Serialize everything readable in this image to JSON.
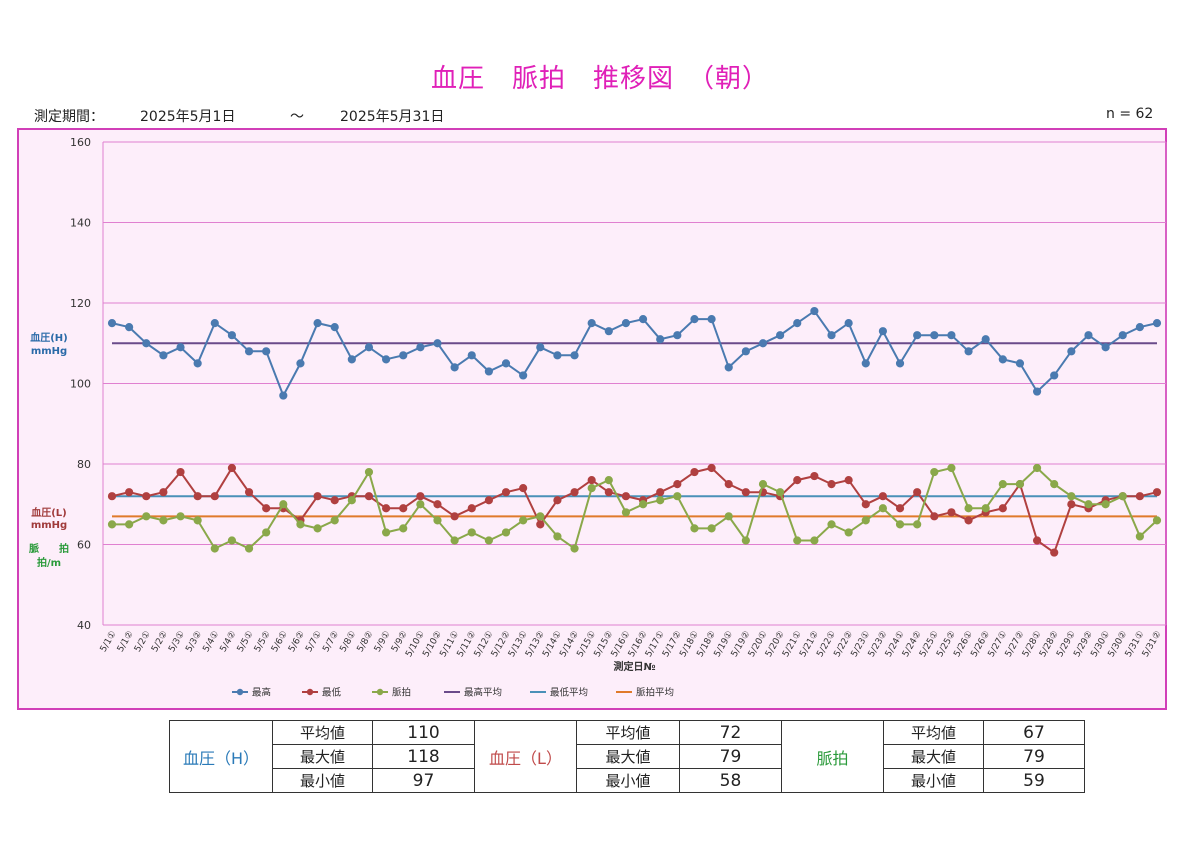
{
  "header": {
    "title": "血圧　脈拍　推移図　（朝）",
    "period_label": "測定期間：",
    "start_date": "2025年5月1日",
    "tilde": "～",
    "end_date": "2025年5月31日",
    "n_label": "n = 62"
  },
  "chart_data": {
    "type": "line",
    "xlabel": "測定日№",
    "ylabel_high": "血圧(H)",
    "ylabel_high_unit": "mmHg",
    "ylabel_low": "血圧(L)",
    "ylabel_low_unit": "mmHg",
    "ylabel_pulse": "脈　　拍",
    "ylabel_pulse_unit": "拍/m",
    "ylim": [
      40,
      160
    ],
    "yticks": [
      40,
      60,
      80,
      100,
      120,
      140,
      160
    ],
    "grid": true,
    "legend_position": "bottom",
    "x": [
      "5/1①",
      "5/1②",
      "5/2①",
      "5/2②",
      "5/3①",
      "5/3②",
      "5/4①",
      "5/4②",
      "5/5①",
      "5/5②",
      "5/6①",
      "5/6②",
      "5/7①",
      "5/7②",
      "5/8①",
      "5/8②",
      "5/9①",
      "5/9②",
      "5/10①",
      "5/10②",
      "5/11①",
      "5/11②",
      "5/12①",
      "5/12②",
      "5/13①",
      "5/13②",
      "5/14①",
      "5/14②",
      "5/15①",
      "5/15②",
      "5/16①",
      "5/16②",
      "5/17①",
      "5/17②",
      "5/18①",
      "5/18②",
      "5/19①",
      "5/19②",
      "5/20①",
      "5/20②",
      "5/21①",
      "5/21②",
      "5/22①",
      "5/22②",
      "5/23①",
      "5/23②",
      "5/24①",
      "5/24②",
      "5/25①",
      "5/25②",
      "5/26①",
      "5/26②",
      "5/27①",
      "5/27②",
      "5/28①",
      "5/28②",
      "5/29①",
      "5/29②",
      "5/30①",
      "5/30②",
      "5/31①",
      "5/31②"
    ],
    "series": [
      {
        "name": "最高",
        "color": "#4a7ab0",
        "marker": true,
        "values": [
          115,
          114,
          110,
          107,
          109,
          105,
          115,
          112,
          108,
          108,
          97,
          105,
          115,
          114,
          106,
          109,
          106,
          107,
          109,
          110,
          104,
          107,
          103,
          105,
          102,
          109,
          107,
          107,
          115,
          113,
          115,
          116,
          111,
          112,
          116,
          116,
          104,
          108,
          110,
          112,
          115,
          118,
          112,
          115,
          105,
          113,
          105,
          112,
          112,
          112,
          108,
          111,
          106,
          105,
          98,
          102,
          108,
          112,
          109,
          112,
          114,
          115
        ]
      },
      {
        "name": "最低",
        "color": "#b04040",
        "marker": true,
        "values": [
          72,
          73,
          72,
          73,
          78,
          72,
          72,
          79,
          73,
          69,
          69,
          66,
          72,
          71,
          72,
          72,
          69,
          69,
          72,
          70,
          67,
          69,
          71,
          73,
          74,
          65,
          71,
          73,
          76,
          73,
          72,
          71,
          73,
          75,
          78,
          79,
          75,
          73,
          73,
          72,
          76,
          77,
          75,
          76,
          70,
          72,
          69,
          73,
          67,
          68,
          66,
          68,
          69,
          75,
          61,
          58,
          70,
          69,
          71,
          72,
          72,
          73
        ]
      },
      {
        "name": "脈拍",
        "color": "#8aa84a",
        "marker": true,
        "values": [
          65,
          65,
          67,
          66,
          67,
          66,
          59,
          61,
          59,
          63,
          70,
          65,
          64,
          66,
          71,
          78,
          63,
          64,
          70,
          66,
          61,
          63,
          61,
          63,
          66,
          67,
          62,
          59,
          74,
          76,
          68,
          70,
          71,
          72,
          64,
          64,
          67,
          61,
          75,
          73,
          61,
          61,
          65,
          63,
          66,
          69,
          65,
          65,
          78,
          79,
          69,
          69,
          75,
          75,
          79,
          75,
          72,
          70,
          70,
          72,
          62,
          66
        ]
      },
      {
        "name": "最高平均",
        "color": "#6a4a8a",
        "marker": false,
        "constant": 110
      },
      {
        "name": "最低平均",
        "color": "#4a90b8",
        "marker": false,
        "constant": 72
      },
      {
        "name": "脈拍平均",
        "color": "#e07a2a",
        "marker": false,
        "constant": 67
      }
    ]
  },
  "stats": {
    "avg_label": "平均値",
    "max_label": "最大値",
    "min_label": "最小値",
    "groups": [
      {
        "name": "血圧（H）",
        "color": "#2a7ab8",
        "avg": "110",
        "max": "118",
        "min": "97"
      },
      {
        "name": "血圧（L）",
        "color": "#c04a4a",
        "avg": "72",
        "max": "79",
        "min": "58"
      },
      {
        "name": "脈拍",
        "color": "#2a9a3a",
        "avg": "67",
        "max": "79",
        "min": "59"
      }
    ]
  }
}
